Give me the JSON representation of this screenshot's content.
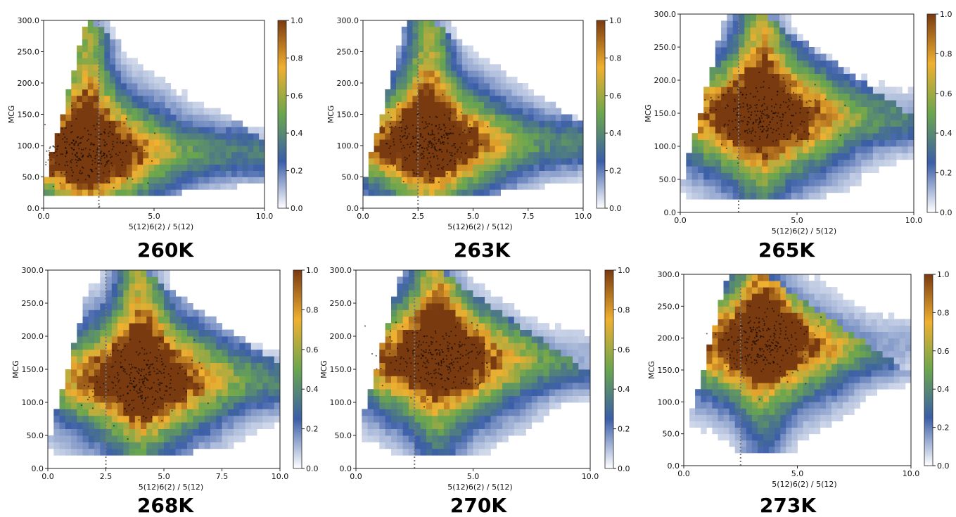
{
  "figure": {
    "colorbar_stops": [
      "#ffffff",
      "#3b5ea8",
      "#6aa64e",
      "#f0b030",
      "#7a3a10"
    ]
  },
  "chart_data": [
    {
      "type": "heatmap",
      "title": "260K",
      "xlabel": "5(12)6(2) / 5(12)",
      "ylabel": "MCG",
      "xlim": [
        0,
        10
      ],
      "ylim": [
        0,
        300
      ],
      "xticks": [
        "0.0",
        "5.0",
        "10.0"
      ],
      "yticks": [
        "0.0",
        "50.0",
        "100.0",
        "150.0",
        "200.0",
        "250.0",
        "300.0"
      ],
      "colorbar_ticks": [
        "0.0",
        "0.2",
        "0.4",
        "0.6",
        "0.8",
        "1.0"
      ],
      "dotted_line_x": 2.5,
      "density_peak": {
        "x": 2.0,
        "y": 90
      }
    },
    {
      "type": "heatmap",
      "title": "263K",
      "xlabel": "5(12)6(2) / 5(12)",
      "ylabel": "MCG",
      "xlim": [
        0,
        10
      ],
      "ylim": [
        0,
        300
      ],
      "xticks": [
        "0.0",
        "2.5",
        "5.0",
        "7.5",
        "10.0"
      ],
      "yticks": [
        "0.0",
        "50.0",
        "100.0",
        "150.0",
        "200.0",
        "250.0",
        "300.0"
      ],
      "colorbar_ticks": [
        "0.0",
        "0.2",
        "0.4",
        "0.6",
        "0.8",
        "1.0"
      ],
      "dotted_line_x": 2.5,
      "density_peak": {
        "x": 3.0,
        "y": 105
      }
    },
    {
      "type": "heatmap",
      "title": "265K",
      "xlabel": "5(12)6(2) / 5(12)",
      "ylabel": "MCG",
      "xlim": [
        0,
        10
      ],
      "ylim": [
        0,
        300
      ],
      "xticks": [
        "0.0",
        "5.0",
        "10.0"
      ],
      "yticks": [
        "0.0",
        "50.0",
        "100.0",
        "150.0",
        "200.0",
        "250.0",
        "300.0"
      ],
      "colorbar_ticks": [
        "0.0",
        "0.2",
        "0.4",
        "0.6",
        "0.8",
        "1.0"
      ],
      "dotted_line_x": 2.5,
      "density_peak": {
        "x": 3.5,
        "y": 145
      }
    },
    {
      "type": "heatmap",
      "title": "268K",
      "xlabel": "5(12)6(2) / 5(12)",
      "ylabel": "MCG",
      "xlim": [
        0,
        10
      ],
      "ylim": [
        0,
        300
      ],
      "xticks": [
        "0.0",
        "2.5",
        "5.0",
        "7.5",
        "10.0"
      ],
      "yticks": [
        "0.0",
        "50.0",
        "100.0",
        "150.0",
        "200.0",
        "250.0",
        "300.0"
      ],
      "colorbar_ticks": [
        "0.0",
        "0.2",
        "0.4",
        "0.6",
        "0.8",
        "1.0"
      ],
      "dotted_line_x": 2.5,
      "density_peak": {
        "x": 4.0,
        "y": 135
      }
    },
    {
      "type": "heatmap",
      "title": "270K",
      "xlabel": "5(12)6(2) / 5(12)",
      "ylabel": "MCG",
      "xlim": [
        0,
        10
      ],
      "ylim": [
        0,
        300
      ],
      "xticks": [
        "0.0",
        "5.0",
        "10.0"
      ],
      "yticks": [
        "0.0",
        "50.0",
        "100.0",
        "150.0",
        "200.0",
        "250.0",
        "300.0"
      ],
      "colorbar_ticks": [
        "0.0",
        "0.2",
        "0.4",
        "0.6",
        "0.8",
        "1.0"
      ],
      "dotted_line_x": 2.5,
      "density_peak": {
        "x": 3.5,
        "y": 165
      }
    },
    {
      "type": "heatmap",
      "title": "273K",
      "xlabel": "5(12)6(2) / 5(12)",
      "ylabel": "MCG",
      "xlim": [
        0,
        10
      ],
      "ylim": [
        0,
        300
      ],
      "xticks": [
        "0.0",
        "5.0",
        "10.0"
      ],
      "yticks": [
        "0.0",
        "50.0",
        "100.0",
        "150.0",
        "200.0",
        "250.0",
        "300.0"
      ],
      "colorbar_ticks": [
        "0.0",
        "0.2",
        "0.4",
        "0.6",
        "0.8",
        "1.0"
      ],
      "dotted_line_x": 2.5,
      "density_peak": {
        "x": 3.5,
        "y": 190
      }
    }
  ]
}
